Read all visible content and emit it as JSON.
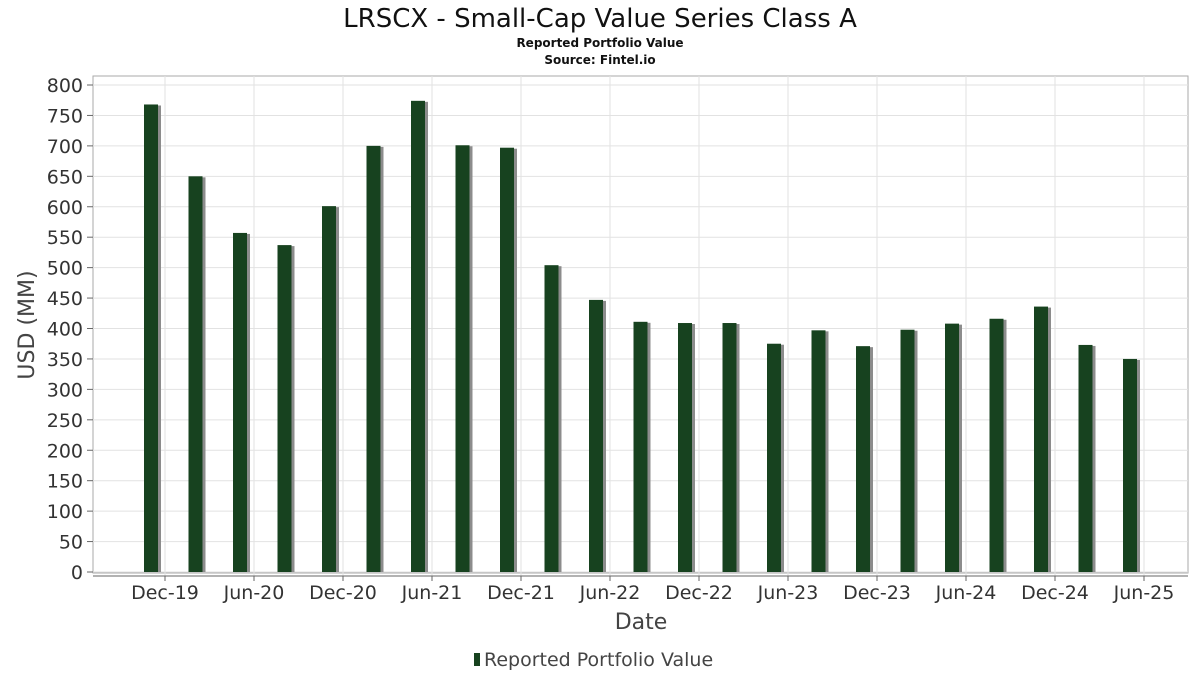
{
  "chart_data": {
    "type": "bar",
    "title": "LRSCX - Small-Cap Value Series Class A",
    "subtitle": "Reported Portfolio Value",
    "source": "Source: Fintel.io",
    "xlabel": "Date",
    "ylabel": "USD (MM)",
    "ylim": [
      0,
      800
    ],
    "yticks": [
      0,
      50,
      100,
      150,
      200,
      250,
      300,
      350,
      400,
      450,
      500,
      550,
      600,
      650,
      700,
      750,
      800
    ],
    "xticks": [
      "Dec-19",
      "Jun-20",
      "Dec-20",
      "Jun-21",
      "Dec-21",
      "Jun-22",
      "Dec-22",
      "Jun-23",
      "Dec-23",
      "Jun-24",
      "Dec-24",
      "Jun-25"
    ],
    "grid": true,
    "legend": "bottom-center",
    "series": [
      {
        "name": "Reported Portfolio Value",
        "color": "#17421f",
        "values": [
          768,
          650,
          557,
          537,
          601,
          700,
          774,
          701,
          697,
          504,
          447,
          411,
          409,
          409,
          375,
          397,
          371,
          398,
          408,
          416,
          436,
          373,
          350
        ]
      }
    ]
  }
}
